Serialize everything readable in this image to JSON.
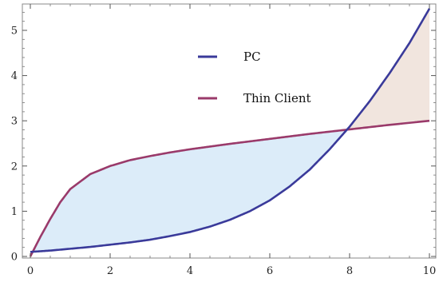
{
  "chart_data": {
    "type": "line",
    "title": "",
    "xlabel": "",
    "ylabel": "",
    "xlim": [
      0,
      10
    ],
    "ylim": [
      -0.1,
      5.6
    ],
    "x_ticks": [
      0,
      2,
      4,
      6,
      8,
      10
    ],
    "x_tick_labels": [
      "0",
      "2",
      "4",
      "6",
      "8",
      "10"
    ],
    "y_ticks": [
      0,
      1,
      2,
      3,
      4,
      5
    ],
    "y_tick_labels": [
      "0",
      "1",
      "2",
      "3",
      "4",
      "5"
    ],
    "grid": false,
    "legend_position": "upper-center",
    "series": [
      {
        "name": "PC",
        "color": "#3a3a9a",
        "x": [
          0,
          0.5,
          1,
          1.5,
          2,
          2.5,
          3,
          3.5,
          4,
          4.5,
          5,
          5.5,
          6,
          6.5,
          7,
          7.5,
          8,
          8.5,
          9,
          9.5,
          10
        ],
        "values": [
          0.1,
          0.13,
          0.17,
          0.21,
          0.26,
          0.31,
          0.37,
          0.45,
          0.54,
          0.66,
          0.81,
          1.0,
          1.24,
          1.55,
          1.92,
          2.37,
          2.87,
          3.43,
          4.05,
          4.72,
          5.48
        ]
      },
      {
        "name": "Thin Client",
        "color": "#9a3a6a",
        "x": [
          0,
          0.25,
          0.5,
          0.75,
          1,
          1.5,
          2,
          2.5,
          3,
          3.5,
          4,
          5,
          6,
          7,
          8,
          9,
          10
        ],
        "values": [
          0.0,
          0.43,
          0.83,
          1.2,
          1.49,
          1.82,
          2.0,
          2.13,
          2.22,
          2.3,
          2.37,
          2.49,
          2.6,
          2.71,
          2.81,
          2.91,
          3.0
        ]
      }
    ],
    "shading": {
      "pc_below_color": "#dcecf9",
      "pc_above_color": "#f1e5de"
    }
  }
}
